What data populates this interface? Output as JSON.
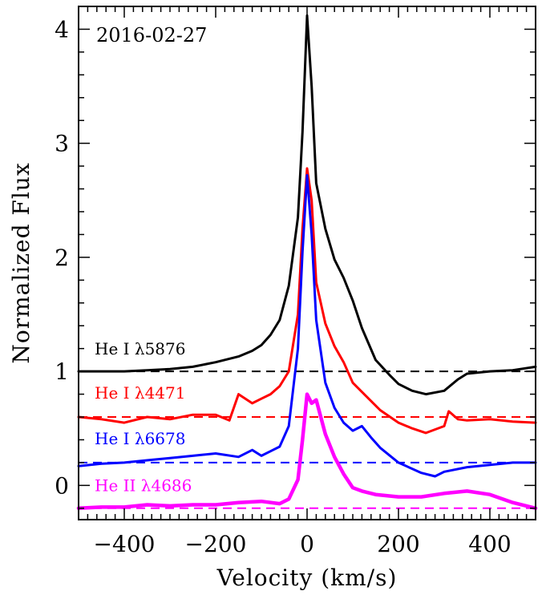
{
  "chart_data": {
    "type": "line",
    "title": "2016-02-27",
    "xlabel": "Velocity (km/s)",
    "ylabel": "Normalized Flux",
    "xlim": [
      -500,
      500
    ],
    "ylim": [
      -0.3,
      4.2
    ],
    "x_ticks": [
      -400,
      -200,
      0,
      200,
      400
    ],
    "x_tick_labels": [
      "−400",
      "−200",
      "0",
      "200",
      "400"
    ],
    "y_ticks": [
      0,
      1,
      2,
      3,
      4
    ],
    "y_tick_labels": [
      "0",
      "1",
      "2",
      "3",
      "4"
    ],
    "grid": false,
    "legend": "inline labels on the left",
    "series": [
      {
        "name": "He I λ5876",
        "color": "#000000",
        "baseline": 1.0,
        "x": [
          -500,
          -450,
          -400,
          -350,
          -300,
          -250,
          -200,
          -150,
          -120,
          -100,
          -80,
          -60,
          -40,
          -20,
          -10,
          0,
          10,
          20,
          40,
          60,
          80,
          100,
          120,
          150,
          180,
          200,
          230,
          260,
          300,
          330,
          350,
          400,
          450,
          500
        ],
        "y": [
          1.0,
          1.0,
          1.0,
          1.01,
          1.02,
          1.04,
          1.08,
          1.13,
          1.18,
          1.23,
          1.32,
          1.45,
          1.75,
          2.35,
          3.1,
          4.12,
          3.5,
          2.65,
          2.25,
          1.98,
          1.82,
          1.62,
          1.38,
          1.1,
          0.97,
          0.89,
          0.83,
          0.8,
          0.83,
          0.93,
          0.98,
          1.0,
          1.01,
          1.04
        ]
      },
      {
        "name": "He I λ4471",
        "color": "#ff0000",
        "baseline": 0.6,
        "x": [
          -500,
          -450,
          -400,
          -350,
          -300,
          -250,
          -200,
          -170,
          -150,
          -120,
          -100,
          -80,
          -60,
          -40,
          -20,
          -10,
          0,
          10,
          20,
          40,
          60,
          80,
          100,
          130,
          160,
          200,
          230,
          260,
          300,
          310,
          330,
          350,
          400,
          450,
          500
        ],
        "y": [
          0.6,
          0.58,
          0.55,
          0.6,
          0.58,
          0.62,
          0.62,
          0.57,
          0.8,
          0.72,
          0.76,
          0.8,
          0.87,
          1.0,
          1.5,
          2.25,
          2.78,
          2.5,
          1.78,
          1.42,
          1.22,
          1.08,
          0.9,
          0.78,
          0.66,
          0.55,
          0.5,
          0.46,
          0.52,
          0.65,
          0.58,
          0.57,
          0.58,
          0.56,
          0.55
        ]
      },
      {
        "name": "He I λ6678",
        "color": "#0000ff",
        "baseline": 0.2,
        "x": [
          -500,
          -450,
          -400,
          -350,
          -300,
          -250,
          -200,
          -150,
          -120,
          -100,
          -80,
          -60,
          -40,
          -20,
          -10,
          0,
          10,
          20,
          40,
          60,
          80,
          100,
          120,
          140,
          160,
          200,
          250,
          280,
          300,
          350,
          400,
          450,
          500
        ],
        "y": [
          0.17,
          0.19,
          0.2,
          0.22,
          0.24,
          0.26,
          0.28,
          0.25,
          0.31,
          0.26,
          0.3,
          0.34,
          0.52,
          1.2,
          2.05,
          2.72,
          2.2,
          1.45,
          0.9,
          0.68,
          0.55,
          0.48,
          0.52,
          0.42,
          0.33,
          0.2,
          0.11,
          0.08,
          0.12,
          0.16,
          0.18,
          0.2,
          0.2
        ]
      },
      {
        "name": "He II λ4686",
        "color": "#ff00ff",
        "baseline": -0.2,
        "x": [
          -500,
          -450,
          -400,
          -350,
          -300,
          -250,
          -200,
          -150,
          -100,
          -60,
          -40,
          -20,
          -10,
          0,
          10,
          20,
          30,
          40,
          60,
          80,
          100,
          120,
          150,
          200,
          250,
          300,
          350,
          400,
          450,
          500
        ],
        "y": [
          -0.2,
          -0.19,
          -0.19,
          -0.17,
          -0.18,
          -0.17,
          -0.17,
          -0.15,
          -0.14,
          -0.16,
          -0.12,
          0.05,
          0.4,
          0.8,
          0.72,
          0.75,
          0.6,
          0.45,
          0.25,
          0.1,
          -0.02,
          -0.05,
          -0.08,
          -0.1,
          -0.1,
          -0.07,
          -0.05,
          -0.08,
          -0.15,
          -0.2
        ]
      }
    ]
  }
}
